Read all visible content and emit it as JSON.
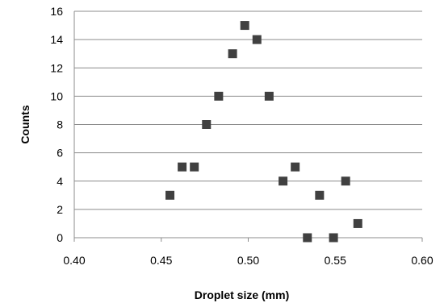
{
  "chart_data": {
    "type": "scatter",
    "title": "",
    "xlabel": "Droplet size (mm)",
    "ylabel": "Counts",
    "xlim": [
      0.4,
      0.6
    ],
    "ylim": [
      0,
      16
    ],
    "x_ticks": [
      "0.40",
      "0.45",
      "0.50",
      "0.55",
      "0.60"
    ],
    "y_ticks": [
      "0",
      "2",
      "4",
      "6",
      "8",
      "10",
      "12",
      "14",
      "16"
    ],
    "grid": "horizontal",
    "legend": "none",
    "marker": "square",
    "marker_color": "#404040",
    "series": [
      {
        "points": [
          {
            "x": 0.455,
            "y": 3
          },
          {
            "x": 0.462,
            "y": 5
          },
          {
            "x": 0.469,
            "y": 5
          },
          {
            "x": 0.476,
            "y": 8
          },
          {
            "x": 0.483,
            "y": 10
          },
          {
            "x": 0.491,
            "y": 13
          },
          {
            "x": 0.498,
            "y": 15
          },
          {
            "x": 0.505,
            "y": 14
          },
          {
            "x": 0.512,
            "y": 10
          },
          {
            "x": 0.52,
            "y": 4
          },
          {
            "x": 0.527,
            "y": 5
          },
          {
            "x": 0.534,
            "y": 0
          },
          {
            "x": 0.541,
            "y": 3
          },
          {
            "x": 0.549,
            "y": 0
          },
          {
            "x": 0.556,
            "y": 4
          },
          {
            "x": 0.563,
            "y": 1
          }
        ]
      }
    ]
  }
}
